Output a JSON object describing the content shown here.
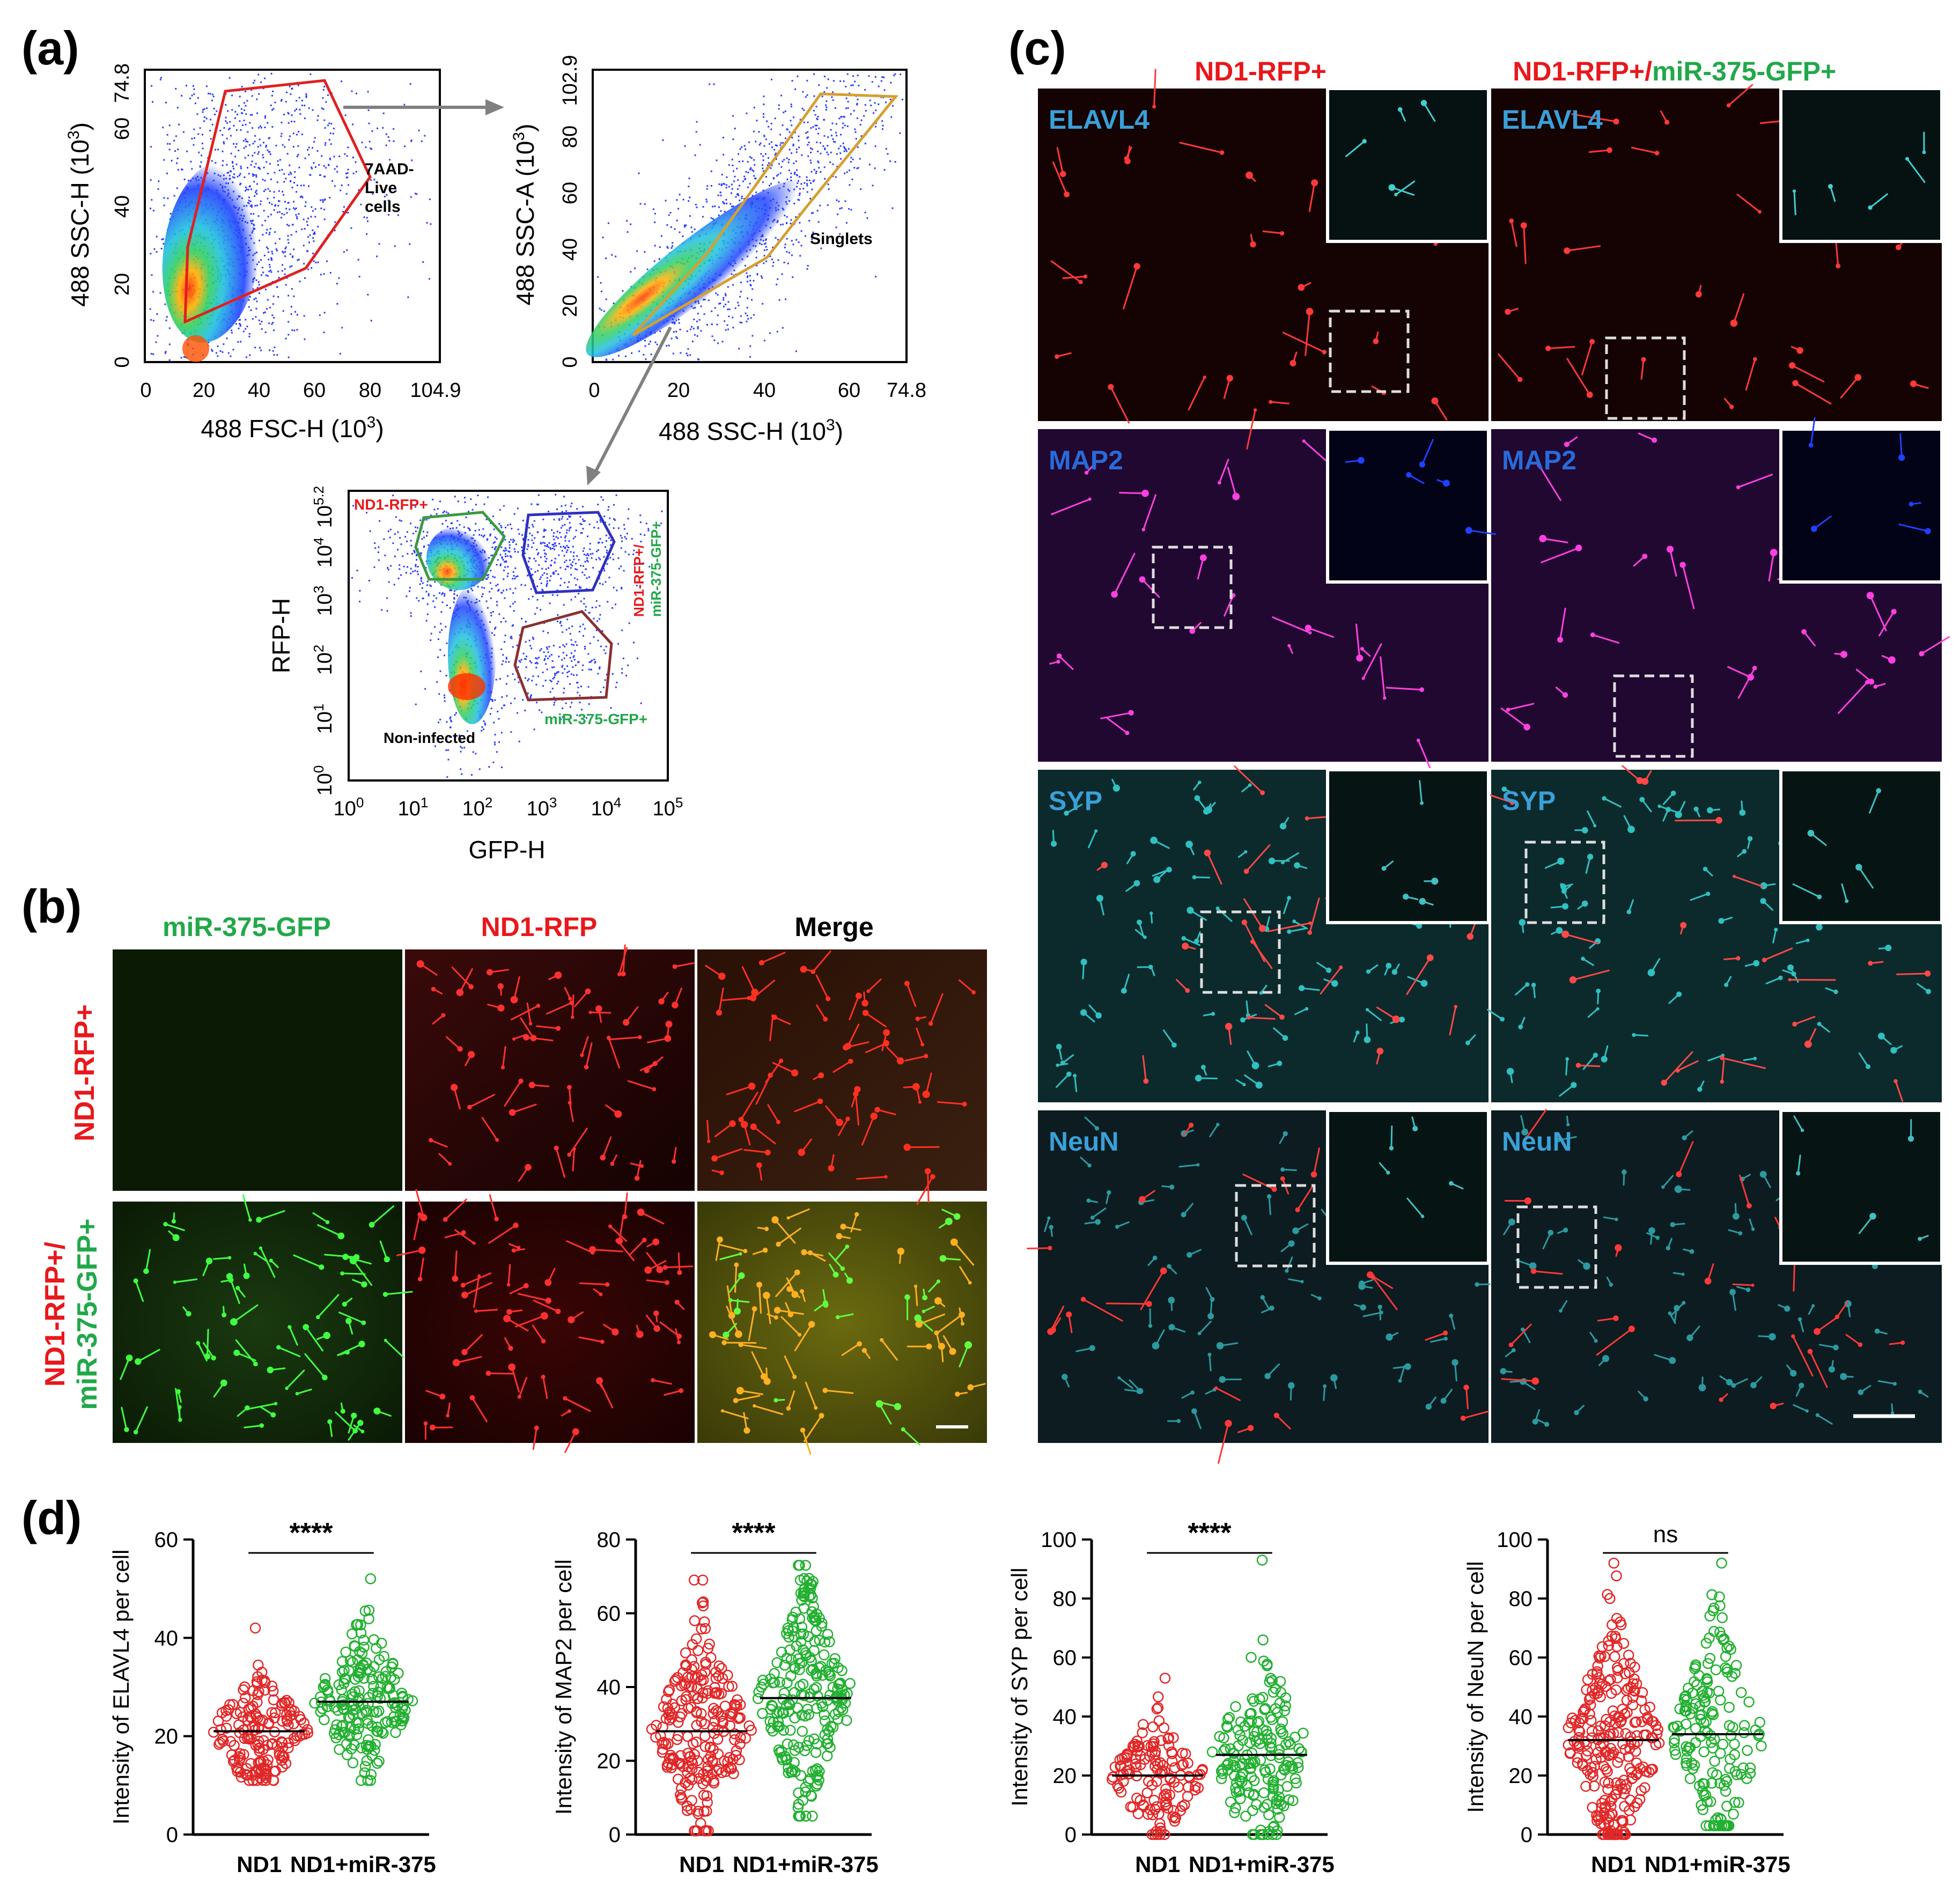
{
  "figure": {
    "panel_a": {
      "label": "(a)",
      "plot1": {
        "ylabel": "488 SSC-H (10",
        "ylabel_exp": "3",
        "xlabel": "488 FSC-H (10",
        "xlabel_exp": "3",
        "close": ")",
        "xticks": [
          "0",
          "20",
          "40",
          "60",
          "80",
          "104.9"
        ],
        "yticks": [
          "0",
          "20",
          "40",
          "60",
          "74.8"
        ],
        "gate_label": [
          "7AAD-",
          "Live",
          "cells"
        ]
      },
      "plot2": {
        "ylabel": "488 SSC-A (10",
        "ylabel_exp": "3",
        "xlabel": "488 SSC-H (10",
        "xlabel_exp": "3",
        "close": ")",
        "xticks": [
          "0",
          "20",
          "40",
          "60",
          "74.8"
        ],
        "yticks": [
          "0",
          "20",
          "40",
          "60",
          "80",
          "102.9"
        ],
        "gate_label": "Singlets"
      },
      "plot3": {
        "ylabel": "RFP-H",
        "xlabel": "GFP-H",
        "xticks": [
          {
            "b": "10",
            "e": "0"
          },
          {
            "b": "10",
            "e": "1"
          },
          {
            "b": "10",
            "e": "2"
          },
          {
            "b": "10",
            "e": "3"
          },
          {
            "b": "10",
            "e": "4"
          },
          {
            "b": "10",
            "e": "5"
          }
        ],
        "yticks": [
          {
            "b": "10",
            "e": "0"
          },
          {
            "b": "10",
            "e": "1"
          },
          {
            "b": "10",
            "e": "2"
          },
          {
            "b": "10",
            "e": "3"
          },
          {
            "b": "10",
            "e": "4"
          },
          {
            "b": "10",
            "e": "5.2"
          }
        ],
        "gate_nd1": "ND1-RFP+",
        "gate_double_1": "ND1-RFP+/",
        "gate_double_2": "miR-375-GFP+",
        "gate_mir": "miR-375-GFP+",
        "gate_non": "Non-infected"
      }
    },
    "panel_b": {
      "label": "(b)",
      "col_headers": [
        "miR-375-GFP",
        "ND1-RFP",
        "Merge"
      ],
      "row1": "ND1-RFP+",
      "row2_line1": "ND1-RFP+/",
      "row2_line2": "miR-375-GFP+"
    },
    "panel_c": {
      "label": "(c)",
      "col1_header": "ND1-RFP+",
      "col2_header_a": "ND1-RFP+/",
      "col2_header_b": "miR-375-GFP+",
      "markers": [
        "ELAVL4",
        "MAP2",
        "SYP",
        "NeuN"
      ]
    },
    "panel_d": {
      "label": "(d)"
    },
    "colors": {
      "red": "#e8181c",
      "green": "#22a84a",
      "cyan": "#3aa0d8",
      "blue": "#2050d0"
    }
  },
  "chart_data": [
    {
      "type": "scatter",
      "title": "",
      "ylabel": "Intensity of ELAVL4 per cell",
      "categories": [
        "ND1",
        "ND1+miR-375"
      ],
      "ylim": [
        0,
        60
      ],
      "yticks": [
        0,
        20,
        40,
        60
      ],
      "series": [
        {
          "name": "ND1",
          "mean": 21,
          "min": 11,
          "max": 42,
          "q1": 18,
          "q3": 25,
          "n": 170
        },
        {
          "name": "ND1+miR-375",
          "mean": 27,
          "min": 11,
          "max": 52,
          "q1": 23,
          "q3": 32,
          "n": 190
        }
      ],
      "significance": "****"
    },
    {
      "type": "scatter",
      "title": "",
      "ylabel": "Intensity of MAP2 per cell",
      "categories": [
        "ND1",
        "ND1+miR-375"
      ],
      "ylim": [
        0,
        80
      ],
      "yticks": [
        0,
        20,
        40,
        60,
        80
      ],
      "series": [
        {
          "name": "ND1",
          "mean": 28,
          "min": 1,
          "max": 69,
          "q1": 18,
          "q3": 37,
          "n": 230
        },
        {
          "name": "ND1+miR-375",
          "mean": 37,
          "min": 5,
          "max": 73,
          "q1": 26,
          "q3": 48,
          "n": 240
        }
      ],
      "significance": "****"
    },
    {
      "type": "scatter",
      "title": "",
      "ylabel": "Intensity of SYP per cell",
      "categories": [
        "ND1",
        "ND1+miR-375"
      ],
      "ylim": [
        0,
        100
      ],
      "yticks": [
        0,
        20,
        40,
        60,
        80,
        100
      ],
      "series": [
        {
          "name": "ND1",
          "mean": 20,
          "min": 0,
          "max": 53,
          "q1": 13,
          "q3": 27,
          "n": 140
        },
        {
          "name": "ND1+miR-375",
          "mean": 27,
          "min": 0,
          "max": 93,
          "q1": 17,
          "q3": 35,
          "n": 180
        }
      ],
      "significance": "****"
    },
    {
      "type": "scatter",
      "title": "",
      "ylabel": "Intensity of NeuN per cell",
      "categories": [
        "ND1",
        "ND1+miR-375"
      ],
      "ylim": [
        0,
        100
      ],
      "yticks": [
        0,
        20,
        40,
        60,
        80,
        100
      ],
      "series": [
        {
          "name": "ND1",
          "mean": 32,
          "min": 0,
          "max": 92,
          "q1": 17,
          "q3": 45,
          "n": 260
        },
        {
          "name": "ND1+miR-375",
          "mean": 34,
          "min": 3,
          "max": 92,
          "q1": 18,
          "q3": 47,
          "n": 170
        }
      ],
      "significance": "ns"
    }
  ]
}
